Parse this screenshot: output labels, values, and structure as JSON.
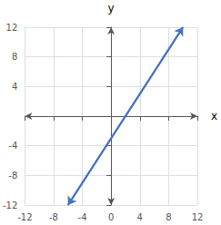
{
  "chart_data": {
    "type": "line",
    "x": [
      -6,
      10
    ],
    "values": [
      -12,
      12
    ],
    "xlabel": "x",
    "ylabel": "y",
    "xlim": [
      -12,
      12
    ],
    "ylim": [
      -12,
      12
    ],
    "xticks": [
      -12,
      -8,
      -4,
      0,
      4,
      8,
      12
    ],
    "yticks": [
      -12,
      -8,
      -4,
      4,
      8,
      12
    ],
    "color": "#4472c4",
    "marker": "arrow",
    "grid": true
  }
}
